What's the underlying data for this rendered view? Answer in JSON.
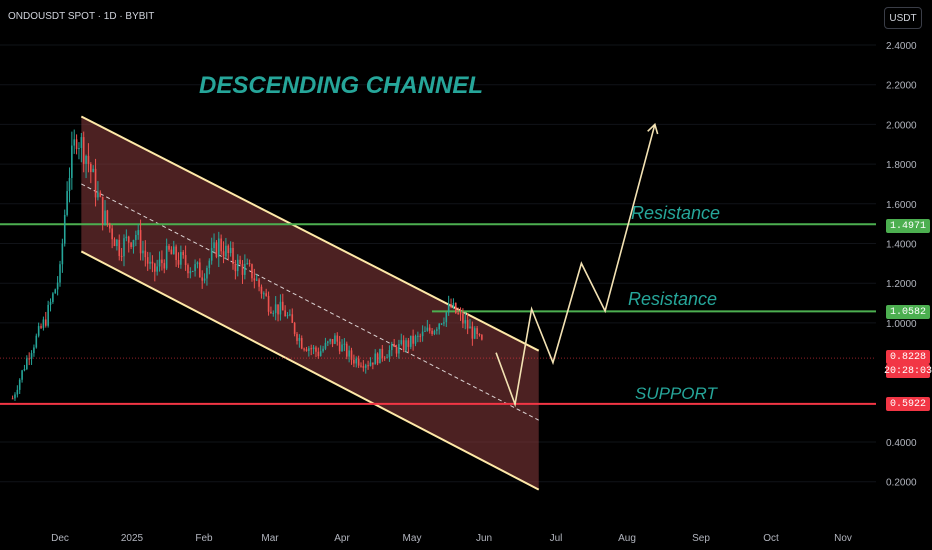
{
  "symbol_label": "ONDOUSDT SPOT · 1D · BYBIT",
  "currency_button": "USDT",
  "current_price_tag": "0.8228",
  "countdown_tag": "20:28:03",
  "price_tags": {
    "resistance_top": "1.4971",
    "resistance_mid": "1.0582",
    "support": "0.5922"
  },
  "annotations": {
    "title": "DESCENDING CHANNEL",
    "resistance_1": "Resistance",
    "resistance_2": "Resistance",
    "support": "SUPPORT"
  },
  "colors": {
    "resistance_line": "#4caf50",
    "support_line": "#f23645",
    "channel_border": "#ffe9a8",
    "channel_fill": "#8a3c3e",
    "annotation_text": "#26a69a",
    "up_candle": "#26a69a",
    "down_candle": "#ef5350"
  },
  "chart_data": {
    "type": "candlestick",
    "y_axis": {
      "ticks": [
        "2.4000",
        "2.2000",
        "2.0000",
        "1.8000",
        "1.6000",
        "1.4000",
        "1.2000",
        "1.0000",
        "0.4000",
        "0.2000"
      ],
      "ylim": [
        0.1,
        2.5
      ]
    },
    "x_axis": {
      "ticks": [
        "Dec",
        "2025",
        "Feb",
        "Mar",
        "Apr",
        "May",
        "Jun",
        "Jul",
        "Aug",
        "Sep",
        "Oct",
        "Nov"
      ]
    },
    "levels": [
      {
        "name": "resistance_top",
        "value": 1.4971
      },
      {
        "name": "resistance_mid",
        "value": 1.0582
      },
      {
        "name": "support",
        "value": 0.5922
      },
      {
        "name": "current_price",
        "value": 0.8228
      }
    ],
    "channel": {
      "upper": [
        [
          "Dec 10",
          2.04
        ],
        [
          "Jun 21",
          0.86
        ]
      ],
      "lower": [
        [
          "Dec 10",
          1.36
        ],
        [
          "Jun 21",
          0.16
        ]
      ],
      "start_price_shaded_to": 2.04
    },
    "price_path": [
      [
        "Nov 11",
        0.62
      ],
      [
        "Nov 18",
        0.85
      ],
      [
        "Nov 25",
        1.02
      ],
      [
        "Dec 1",
        1.25
      ],
      [
        "Dec 4",
        1.7
      ],
      [
        "Dec 8",
        1.95
      ],
      [
        "Dec 12",
        1.85
      ],
      [
        "Dec 19",
        1.55
      ],
      [
        "Dec 26",
        1.38
      ],
      [
        "Jan 2",
        1.45
      ],
      [
        "Jan 9",
        1.25
      ],
      [
        "Jan 16",
        1.35
      ],
      [
        "Jan 23",
        1.3
      ],
      [
        "Jan 30",
        1.25
      ],
      [
        "Feb 6",
        1.4
      ],
      [
        "Feb 13",
        1.3
      ],
      [
        "Feb 20",
        1.25
      ],
      [
        "Feb 27",
        1.1
      ],
      [
        "Mar 6",
        1.05
      ],
      [
        "Mar 13",
        0.9
      ],
      [
        "Mar 20",
        0.85
      ],
      [
        "Mar 27",
        0.92
      ],
      [
        "Apr 3",
        0.82
      ],
      [
        "Apr 10",
        0.8
      ],
      [
        "Apr 17",
        0.85
      ],
      [
        "Apr 24",
        0.88
      ],
      [
        "May 1",
        0.92
      ],
      [
        "May 8",
        0.98
      ],
      [
        "May 15",
        1.08
      ],
      [
        "May 22",
        0.98
      ],
      [
        "May 29",
        0.88
      ]
    ],
    "projection": [
      [
        "Jun 3",
        0.85
      ],
      [
        "Jun 11",
        0.59
      ],
      [
        "Jun 18",
        1.07
      ],
      [
        "Jun 27",
        0.8
      ],
      [
        "Jul 9",
        1.3
      ],
      [
        "Jul 19",
        1.06
      ],
      [
        "Aug 9",
        2.0
      ]
    ]
  }
}
